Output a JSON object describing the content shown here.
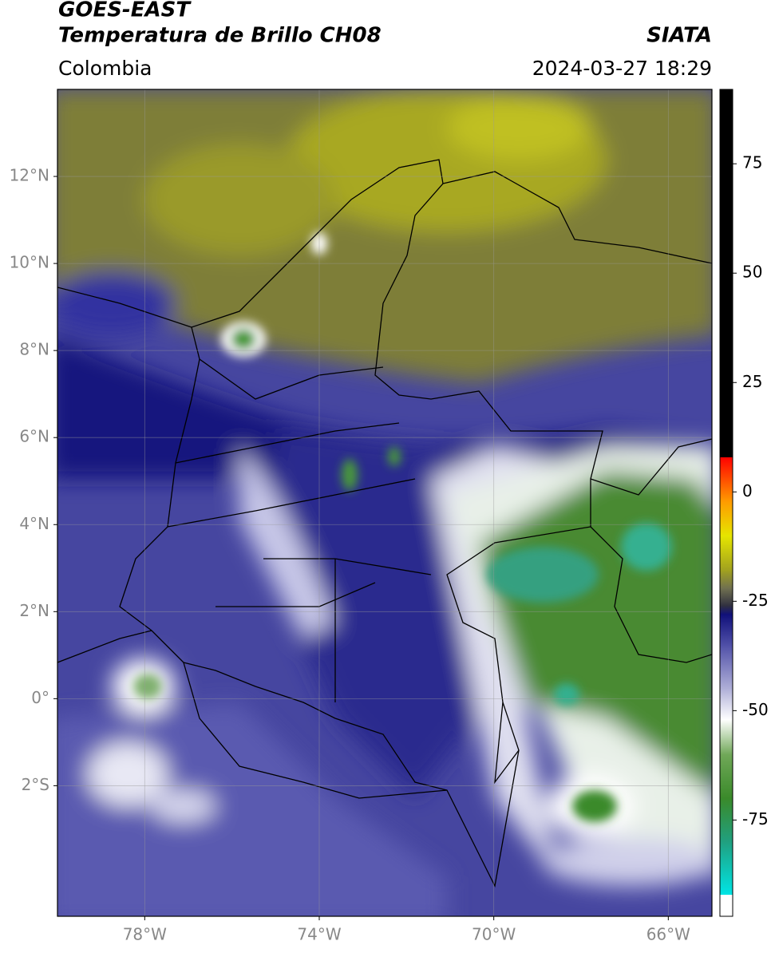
{
  "header": {
    "title": "GOES-EAST",
    "subtitle": "Temperatura de Brillo CH08",
    "region": "Colombia",
    "source": "SIATA",
    "datetime": "2024-03-27 18:29"
  },
  "map": {
    "xlim": [
      -80,
      -65
    ],
    "ylim": [
      -5,
      14
    ],
    "grid": true,
    "xticks": [
      {
        "value": -78,
        "label": "78°W"
      },
      {
        "value": -74,
        "label": "74°W"
      },
      {
        "value": -70,
        "label": "70°W"
      },
      {
        "value": -66,
        "label": "66°W"
      }
    ],
    "yticks": [
      {
        "value": 12,
        "label": "12°N"
      },
      {
        "value": 10,
        "label": "10°N"
      },
      {
        "value": 8,
        "label": "8°N"
      },
      {
        "value": 6,
        "label": "6°N"
      },
      {
        "value": 4,
        "label": "4°N"
      },
      {
        "value": 2,
        "label": "2°N"
      },
      {
        "value": 0,
        "label": "0°"
      },
      {
        "value": -2,
        "label": "2°S"
      }
    ]
  },
  "colorbar": {
    "lim": [
      -97,
      92
    ],
    "ticks": [
      75,
      50,
      25,
      0,
      -25,
      -50,
      -75
    ],
    "stops": [
      {
        "value": -97,
        "color": "#ffffff"
      },
      {
        "value": -92,
        "color": "#ffffff"
      },
      {
        "value": -92,
        "color": "#00e5e5"
      },
      {
        "value": -80,
        "color": "#20a080"
      },
      {
        "value": -70,
        "color": "#3a8a2a"
      },
      {
        "value": -60,
        "color": "#70a858"
      },
      {
        "value": -52,
        "color": "#ffffff"
      },
      {
        "value": -45,
        "color": "#b0b0d8"
      },
      {
        "value": -35,
        "color": "#5050a8"
      },
      {
        "value": -28,
        "color": "#10107a"
      },
      {
        "value": -26,
        "color": "#303040"
      },
      {
        "value": -22,
        "color": "#707050"
      },
      {
        "value": -18,
        "color": "#a0a020"
      },
      {
        "value": -10,
        "color": "#e6e600"
      },
      {
        "value": -2,
        "color": "#ff9900"
      },
      {
        "value": 8,
        "color": "#ff0000"
      },
      {
        "value": 8,
        "color": "#000000"
      },
      {
        "value": 92,
        "color": "#000000"
      }
    ]
  }
}
